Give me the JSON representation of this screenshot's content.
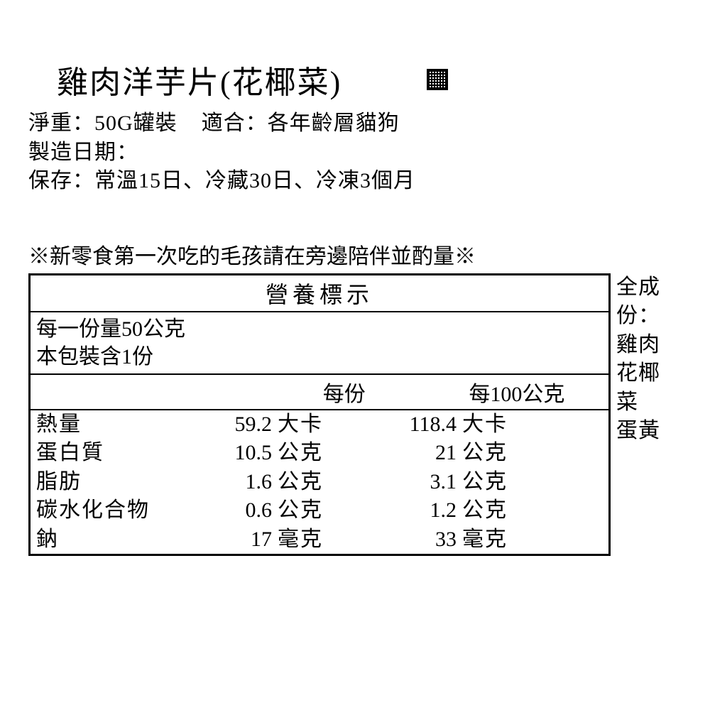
{
  "header": {
    "title": "雞肉洋芋片(花椰菜)",
    "net_weight_label": "淨重：",
    "net_weight_value": "50G罐裝",
    "suitable_label": "適合：",
    "suitable_value": "各年齡層貓狗",
    "mfg_date_label": "製造日期：",
    "storage_label": "保存：",
    "storage_value": "常溫15日、冷藏30日、冷凍3個月"
  },
  "notice": "※新零食第一次吃的毛孩請在旁邊陪伴並酌量※",
  "nutrition": {
    "title": "營養標示",
    "serving_size": "每一份量50公克",
    "servings_per_pack": "本包裝含1份",
    "col_per_serving": "每份",
    "col_per_100g": "每100公克",
    "rows": [
      {
        "name": "熱量",
        "val1": "59.2",
        "unit1": "大卡",
        "val2": "118.4",
        "unit2": "大卡"
      },
      {
        "name": "蛋白質",
        "val1": "10.5",
        "unit1": "公克",
        "val2": "21",
        "unit2": "公克"
      },
      {
        "name": "脂肪",
        "val1": "1.6",
        "unit1": "公克",
        "val2": "3.1",
        "unit2": "公克"
      },
      {
        "name": "碳水化合物",
        "val1": "0.6",
        "unit1": "公克",
        "val2": "1.2",
        "unit2": "公克"
      },
      {
        "name": "鈉",
        "val1": "17",
        "unit1": "毫克",
        "val2": "33",
        "unit2": "毫克"
      }
    ]
  },
  "ingredients": {
    "label": "全成份：",
    "items": [
      "雞肉",
      "花椰菜",
      "蛋黃"
    ]
  }
}
